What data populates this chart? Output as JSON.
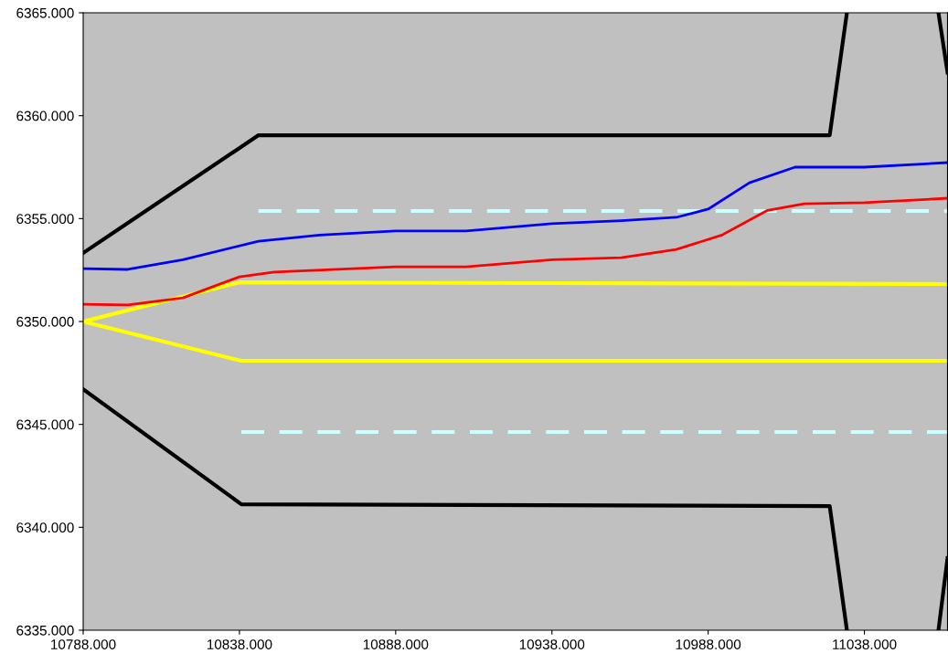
{
  "chart_data": {
    "type": "line",
    "xlim": [
      10788,
      11064.6
    ],
    "ylim": [
      6335,
      6365
    ],
    "xticks": [
      {
        "value": 10788,
        "label": "10788.000"
      },
      {
        "value": 10838,
        "label": "10838.000"
      },
      {
        "value": 10888,
        "label": "10888.000"
      },
      {
        "value": 10938,
        "label": "10938.000"
      },
      {
        "value": 10988,
        "label": "10988.000"
      },
      {
        "value": 11038,
        "label": "11038.000"
      }
    ],
    "yticks": [
      {
        "value": 6335,
        "label": "6335.000"
      },
      {
        "value": 6340,
        "label": "6340.000"
      },
      {
        "value": 6345,
        "label": "6345.000"
      },
      {
        "value": 6350,
        "label": "6350.000"
      },
      {
        "value": 6355,
        "label": "6355.000"
      },
      {
        "value": 6360,
        "label": "6360.000"
      },
      {
        "value": 6365,
        "label": "6365.000"
      }
    ],
    "grid": false,
    "marker": "none",
    "series": [
      {
        "color": "#000000",
        "x": [
          10788,
          10844.1,
          11026.9,
          11032.4,
          null,
          11061.7,
          11064.6
        ],
        "values": [
          6353.33,
          6359.05,
          6359.05,
          6365,
          null,
          6365,
          6362.1
        ]
      },
      {
        "color": "#000000",
        "x": [
          10788,
          10838.6,
          11026.9,
          11032.4,
          null,
          11061.7,
          11064.6
        ],
        "values": [
          6346.71,
          6341.12,
          6341.03,
          6335,
          null,
          6335,
          6338.5
        ]
      },
      {
        "color": "#ffff00",
        "x": [
          10788,
          10838,
          11064.6
        ],
        "values": [
          6350,
          6351.9,
          6351.82
        ]
      },
      {
        "color": "#ffff00",
        "x": [
          10788,
          10838.6,
          11064.6
        ],
        "values": [
          6350,
          6348.09,
          6348.09
        ]
      },
      {
        "color": "#ccffff",
        "line_style": "dashed",
        "x": [
          10844.1,
          11064.6
        ],
        "values": [
          6355.37,
          6355.37
        ]
      },
      {
        "color": "#ccffff",
        "line_style": "dashed",
        "x": [
          10838.6,
          11064.6
        ],
        "values": [
          6344.63,
          6344.63
        ]
      },
      {
        "color": "#0000ff",
        "x": [
          10788,
          10802.3,
          10819.9,
          10844.1,
          10863.7,
          10888,
          10910.5,
          10938,
          10960.2,
          10977.8,
          10988,
          11001.2,
          11015.8,
          11038,
          11064.6
        ],
        "values": [
          6352.57,
          6352.53,
          6353.0,
          6353.9,
          6354.2,
          6354.4,
          6354.4,
          6354.75,
          6354.9,
          6355.06,
          6355.46,
          6356.74,
          6357.5,
          6357.5,
          6357.72
        ]
      },
      {
        "color": "#ff0000",
        "x": [
          10788,
          10802.3,
          10819.9,
          10838,
          10849.1,
          10888,
          10910.5,
          10938,
          10960.2,
          10977.8,
          10992.4,
          11007,
          11018.7,
          11038,
          11064.6
        ],
        "values": [
          6350.84,
          6350.8,
          6351.15,
          6352.17,
          6352.4,
          6352.66,
          6352.66,
          6353.0,
          6353.1,
          6353.5,
          6354.2,
          6355.4,
          6355.72,
          6355.77,
          6355.99
        ]
      }
    ]
  }
}
